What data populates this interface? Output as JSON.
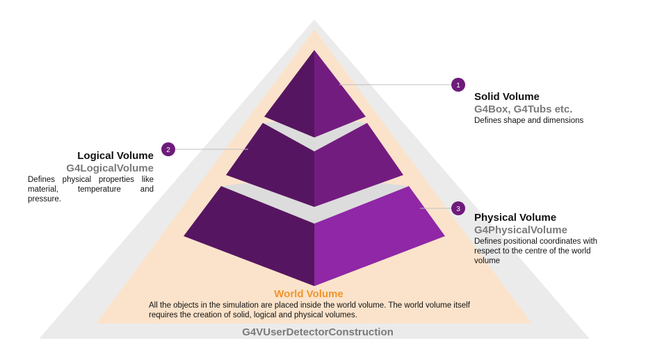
{
  "solid": {
    "number": "1",
    "title": "Solid Volume",
    "subtitle": "G4Box, G4Tubs etc.",
    "description": "Defines shape and dimensions"
  },
  "logical": {
    "number": "2",
    "title": "Logical Volume",
    "subtitle": "G4LogicalVolume",
    "description": "Defines physical properties like material, temperature and pressure."
  },
  "physical": {
    "number": "3",
    "title": "Physical Volume",
    "subtitle": "G4PhysicalVolume",
    "description": "Defines positional coordinates with respect to the centre of the world volume"
  },
  "world": {
    "title": "World Volume",
    "description": "All the objects in the simulation are placed inside the world volume. The world volume itself requires the creation of solid, logical and physical volumes."
  },
  "base": {
    "label": "G4VUserDetectorConstruction"
  },
  "colors": {
    "outer_triangle": "#ebebeb",
    "inner_triangle": "#fbe3cb",
    "world_accent": "#f0952c",
    "purple_dark": "#561560",
    "purple_mid": "#731c80",
    "purple_light": "#8f27a6",
    "gap_gray": "#d9d9d9",
    "badge": "#6e1b7b"
  }
}
